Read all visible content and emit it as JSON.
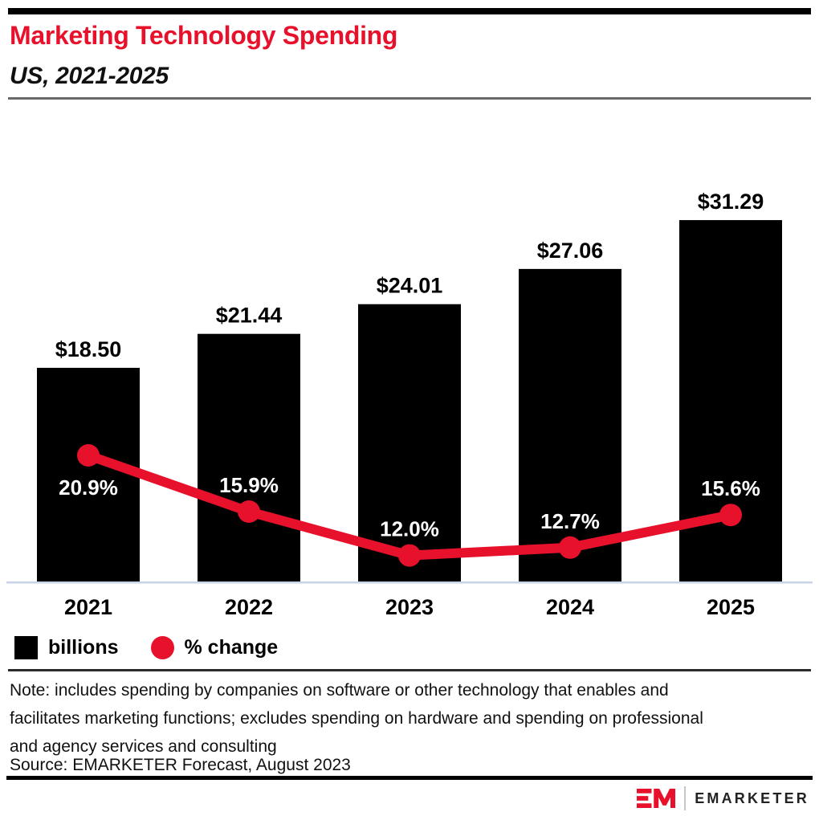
{
  "header": {
    "title": "Marketing Technology Spending",
    "subtitle": "US, 2021-2025"
  },
  "colors": {
    "accent_red": "#E8112B",
    "bar_black": "#000000",
    "axis_line": "#C9D3E8",
    "percent_label_text": "#FFFFFF",
    "note_text": "#111111"
  },
  "legend": {
    "items": [
      {
        "shape": "square",
        "color": "#000000",
        "label": "billions"
      },
      {
        "shape": "circle",
        "color": "#E8112B",
        "label": "% change"
      }
    ]
  },
  "footnote": {
    "note": "Note: includes spending by companies on software or other technology that enables and facilitates marketing functions; excludes spending on hardware and spending on professional and agency services and consulting",
    "source": "Source: EMARKETER Forecast, August 2023"
  },
  "branding": {
    "wordmark": "EMARKETER"
  },
  "chart_data": {
    "type": "bar",
    "subtype": "bar-and-line-combo",
    "title": "Marketing Technology Spending",
    "subtitle": "US, 2021-2025",
    "categories": [
      "2021",
      "2022",
      "2023",
      "2024",
      "2025"
    ],
    "series": [
      {
        "name": "billions",
        "type": "bar",
        "color": "#000000",
        "values": [
          18.5,
          21.44,
          24.01,
          27.06,
          31.29
        ],
        "data_labels": [
          "$18.50",
          "$21.44",
          "$24.01",
          "$27.06",
          "$31.29"
        ],
        "data_label_color": "#000000"
      },
      {
        "name": "% change",
        "type": "line",
        "color": "#E8112B",
        "values": [
          20.9,
          15.9,
          12.0,
          12.7,
          15.6
        ],
        "data_labels": [
          "20.9%",
          "15.9%",
          "12.0%",
          "12.7%",
          "15.6%"
        ],
        "data_label_color": "#FFFFFF"
      }
    ],
    "xlabel": "",
    "ylabel": "",
    "bar_axis_range": [
      0,
      34
    ],
    "line_axis_range": [
      0,
      25
    ],
    "grid": false,
    "legend_position": "bottom-left"
  }
}
